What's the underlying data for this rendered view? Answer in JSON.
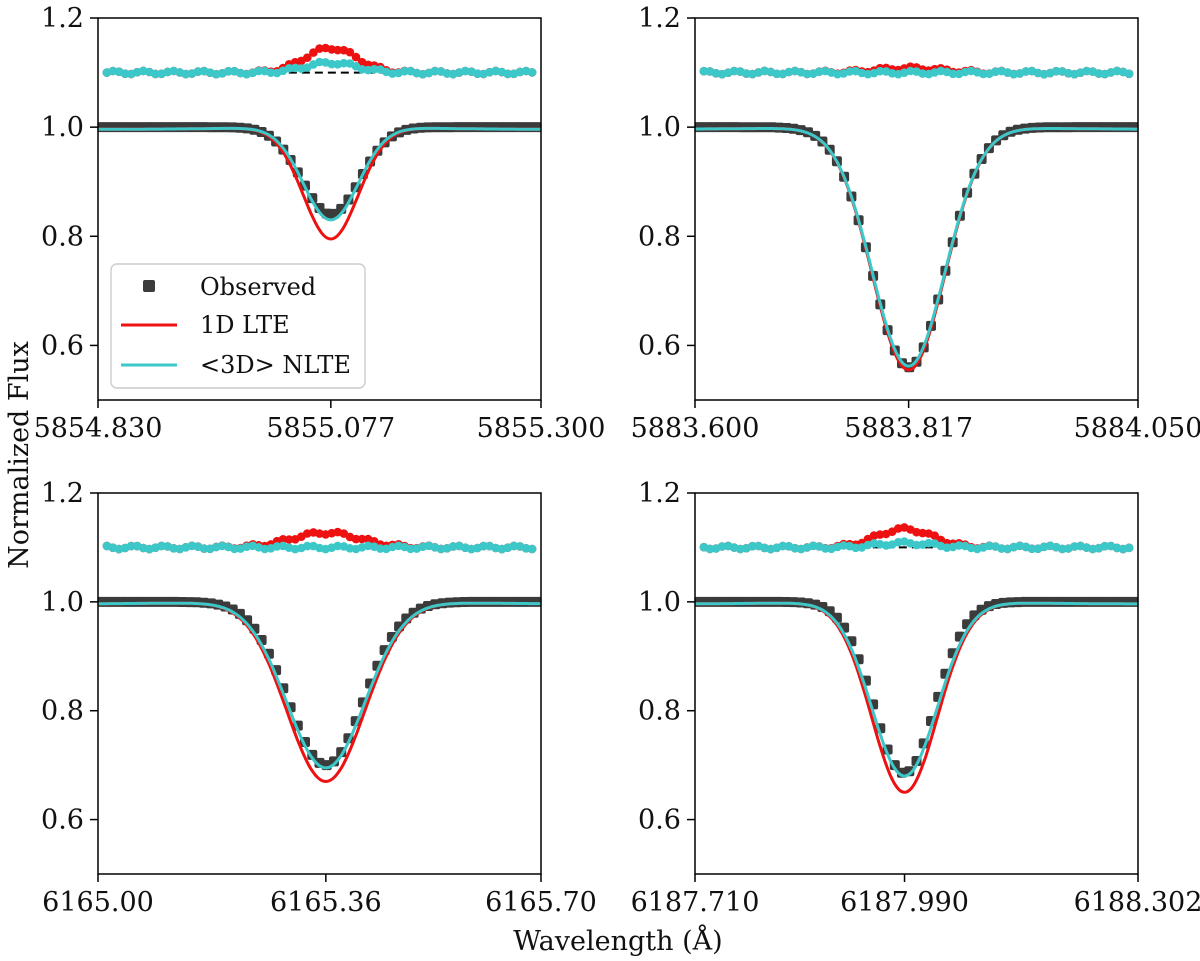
{
  "chart_data": {
    "type": "line",
    "xlabel": "Wavelength (Å)",
    "ylabel": "Normalized Flux",
    "legend": {
      "location": "lower-left of first panel",
      "entries": [
        {
          "label": "Observed",
          "color": "#3b3b3b",
          "marker": "square"
        },
        {
          "label": "1D LTE",
          "color": "#ee1111",
          "marker": "line"
        },
        {
          "label": "<3D> NLTE",
          "color": "#3cc8c8",
          "marker": "line"
        }
      ]
    },
    "colors": {
      "observed": "#3b3b3b",
      "lte": "#ee1111",
      "nlte": "#3cc8c8",
      "reference": "#000000"
    },
    "residual_offset": 1.1,
    "ylim": [
      0.5,
      1.2
    ],
    "yticks": [
      "0.6",
      "0.8",
      "1.0",
      "1.2"
    ],
    "panels": [
      {
        "id": "p1",
        "xlim": [
          5854.83,
          5855.3
        ],
        "xtick_labels": [
          "5854.830",
          "5855.077",
          "5855.300"
        ],
        "line_center": 5855.077,
        "observed_depth": 0.16,
        "lte_depth": 0.205,
        "nlte_depth": 0.17,
        "obs_sigma": 0.065,
        "model_sigma": 0.062,
        "lte_residual_peak": 0.045,
        "nlte_residual_peak": 0.018
      },
      {
        "id": "p2",
        "xlim": [
          5883.6,
          5884.05
        ],
        "xtick_labels": [
          "5883.600",
          "5883.817",
          "5884.050"
        ],
        "line_center": 5883.817,
        "observed_depth": 0.44,
        "lte_depth": 0.445,
        "nlte_depth": 0.438,
        "obs_sigma": 0.082,
        "model_sigma": 0.082,
        "lte_residual_peak": 0.008,
        "nlte_residual_peak": 0.0
      },
      {
        "id": "p3",
        "xlim": [
          6165.0,
          6165.7
        ],
        "xtick_labels": [
          "6165.00",
          "6165.36",
          "6165.70"
        ],
        "line_center": 6165.36,
        "observed_depth": 0.3,
        "lte_depth": 0.33,
        "nlte_depth": 0.305,
        "obs_sigma": 0.085,
        "model_sigma": 0.088,
        "lte_residual_peak": 0.027,
        "nlte_residual_peak": 0.0
      },
      {
        "id": "p4",
        "xlim": [
          6187.71,
          6188.302
        ],
        "xtick_labels": [
          "6187.710",
          "6187.990",
          "6188.302"
        ],
        "line_center": 6187.99,
        "observed_depth": 0.315,
        "lte_depth": 0.35,
        "nlte_depth": 0.32,
        "obs_sigma": 0.07,
        "model_sigma": 0.074,
        "lte_residual_peak": 0.034,
        "nlte_residual_peak": 0.008
      }
    ]
  }
}
